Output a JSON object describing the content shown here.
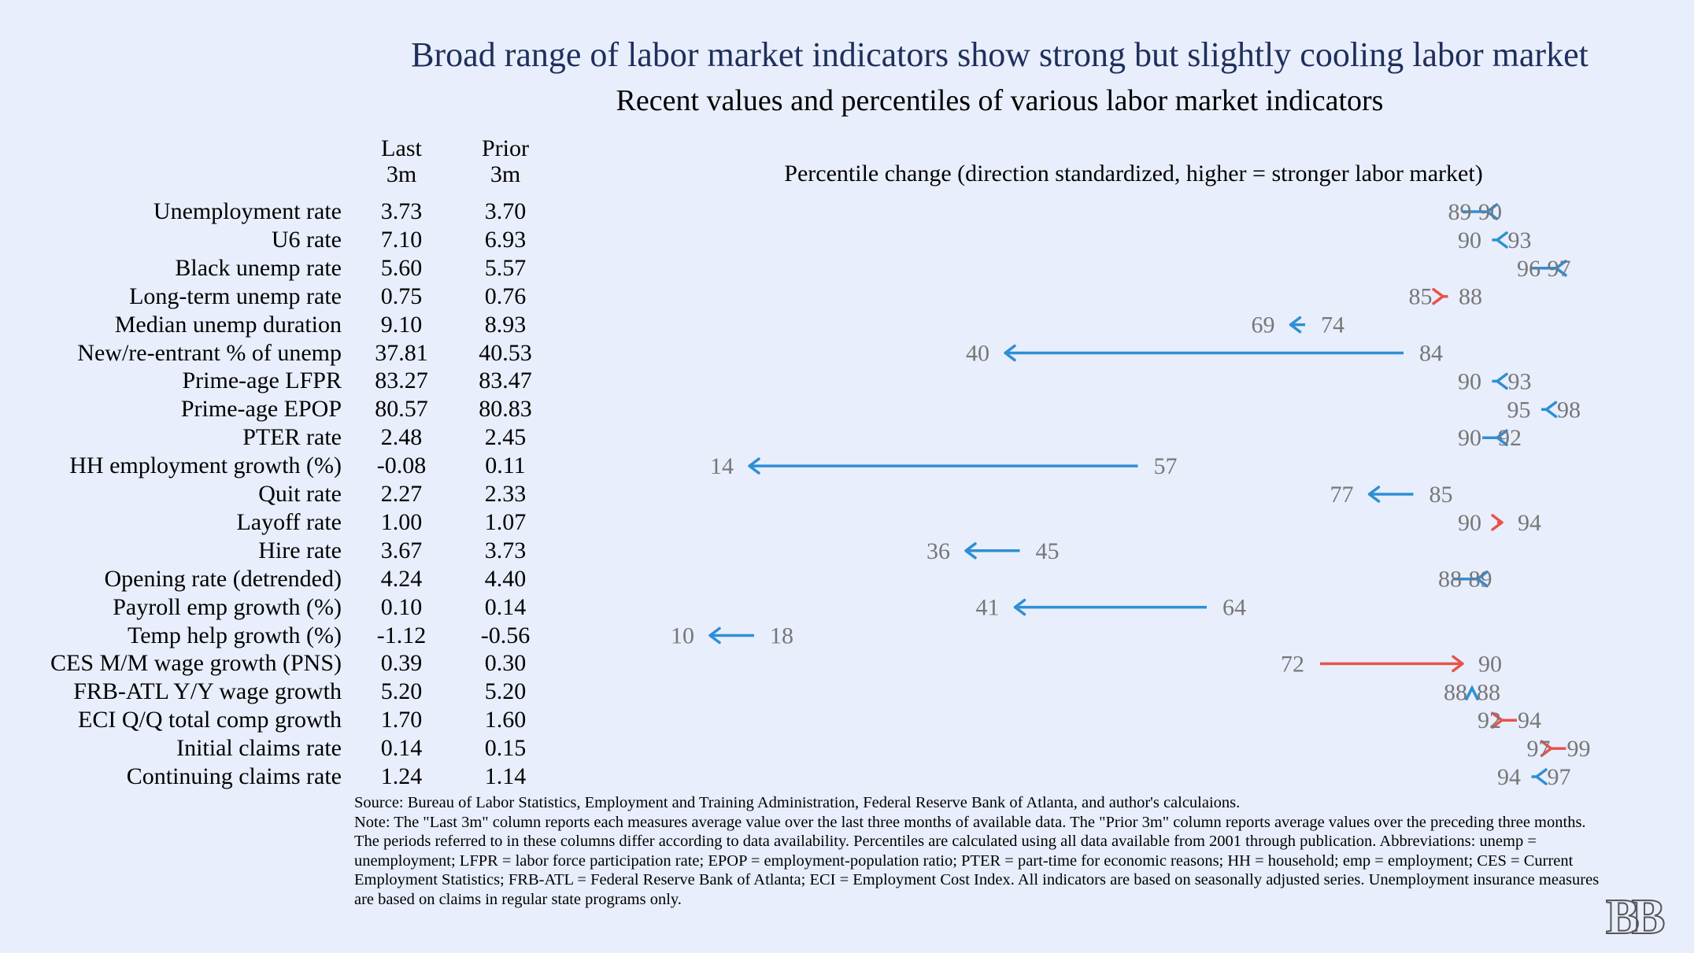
{
  "title": "Broad range of labor market indicators show strong but slightly cooling labor market",
  "subtitle": "Recent values and percentiles of various labor market indicators",
  "columns": {
    "last": "Last\n3m",
    "prior": "Prior\n3m"
  },
  "chart_header": "Percentile change (direction standardized, higher = stronger labor market)",
  "colors": {
    "cooling": "#2d8fd5",
    "strengthening": "#e8534a",
    "percentile_text": "#777777",
    "title": "#1f2f5c"
  },
  "chart_data": {
    "type": "table",
    "xlim": [
      0,
      100
    ],
    "rows": [
      {
        "label": "Unemployment rate",
        "last": "3.73",
        "prior": "3.70",
        "pct_last": 89,
        "pct_prior": 90
      },
      {
        "label": "U6 rate",
        "last": "7.10",
        "prior": "6.93",
        "pct_last": 90,
        "pct_prior": 93
      },
      {
        "label": "Black unemp rate",
        "last": "5.60",
        "prior": "5.57",
        "pct_last": 96,
        "pct_prior": 97
      },
      {
        "label": "Long-term unemp rate",
        "last": "0.75",
        "prior": "0.76",
        "pct_last": 88,
        "pct_prior": 85
      },
      {
        "label": "Median unemp duration",
        "last": "9.10",
        "prior": "8.93",
        "pct_last": 69,
        "pct_prior": 74
      },
      {
        "label": "New/re-entrant % of unemp",
        "last": "37.81",
        "prior": "40.53",
        "pct_last": 40,
        "pct_prior": 84
      },
      {
        "label": "Prime-age LFPR",
        "last": "83.27",
        "prior": "83.47",
        "pct_last": 90,
        "pct_prior": 93
      },
      {
        "label": "Prime-age EPOP",
        "last": "80.57",
        "prior": "80.83",
        "pct_last": 95,
        "pct_prior": 98
      },
      {
        "label": "PTER rate",
        "last": "2.48",
        "prior": "2.45",
        "pct_last": 90,
        "pct_prior": 92
      },
      {
        "label": "HH employment growth (%)",
        "last": "-0.08",
        "prior": "0.11",
        "pct_last": 14,
        "pct_prior": 57
      },
      {
        "label": "Quit rate",
        "last": "2.27",
        "prior": "2.33",
        "pct_last": 77,
        "pct_prior": 85
      },
      {
        "label": "Layoff rate",
        "last": "1.00",
        "prior": "1.07",
        "pct_last": 94,
        "pct_prior": 90
      },
      {
        "label": "Hire rate",
        "last": "3.67",
        "prior": "3.73",
        "pct_last": 36,
        "pct_prior": 45
      },
      {
        "label": "Opening rate (detrended)",
        "last": "4.24",
        "prior": "4.40",
        "pct_last": 88,
        "pct_prior": 89
      },
      {
        "label": "Payroll emp growth (%)",
        "last": "0.10",
        "prior": "0.14",
        "pct_last": 41,
        "pct_prior": 64
      },
      {
        "label": "Temp help growth (%)",
        "last": "-1.12",
        "prior": "-0.56",
        "pct_last": 10,
        "pct_prior": 18
      },
      {
        "label": "CES M/M wage growth (PNS)",
        "last": "0.39",
        "prior": "0.30",
        "pct_last": 90,
        "pct_prior": 72
      },
      {
        "label": "FRB-ATL Y/Y wage growth",
        "last": "5.20",
        "prior": "5.20",
        "pct_last": 88,
        "pct_prior": 88
      },
      {
        "label": "ECI Q/Q total comp growth",
        "last": "1.70",
        "prior": "1.60",
        "pct_last": 94,
        "pct_prior": 92
      },
      {
        "label": "Initial claims rate",
        "last": "0.14",
        "prior": "0.15",
        "pct_last": 99,
        "pct_prior": 97
      },
      {
        "label": "Continuing claims rate",
        "last": "1.24",
        "prior": "1.14",
        "pct_last": 94,
        "pct_prior": 97
      }
    ]
  },
  "notes": {
    "source": "Source: Bureau of Labor Statistics, Employment and Training Administration, Federal Reserve Bank of Atlanta, and author's calculaions.",
    "note": "Note: The \"Last 3m\" column reports each measures average value over the last three months of available data. The \"Prior 3m\" column reports average values over the preceding three months. The periods referred to in these columns differ according to data availability. Percentiles are calculated using all data available from 2001 through publication. Abbreviations: unemp = unemployment; LFPR = labor force participation rate; EPOP = employment-population ratio; PTER = part-time for economic reasons; HH = household; emp = employment; CES = Current Employment Statistics; FRB-ATL = Federal Reserve Bank of Atlanta; ECI = Employment Cost Index. All indicators are based on seasonally adjusted series. Unemployment insurance measures are based on claims in regular state programs only."
  },
  "logo": "BB"
}
